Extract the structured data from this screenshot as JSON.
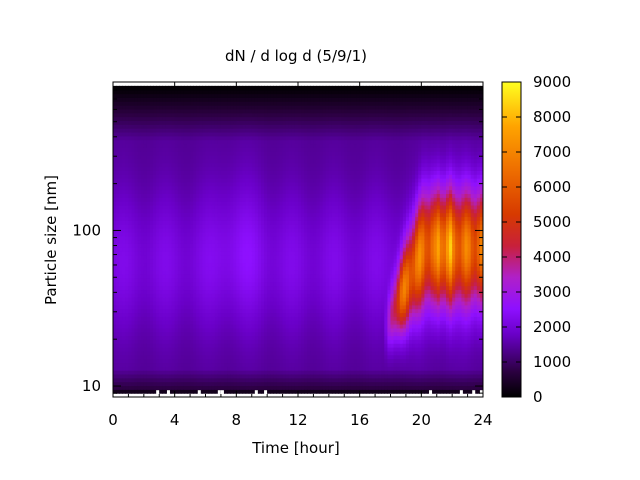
{
  "chart_data": {
    "type": "heatmap",
    "title": "dN / d log d (5/9/1)",
    "xlabel": "Time [hour]",
    "ylabel": "Particle size [nm]",
    "xlim": [
      0,
      24
    ],
    "ylim": [
      8.5,
      900
    ],
    "yscale": "log",
    "x_ticks": [
      0,
      4,
      8,
      12,
      16,
      20,
      24
    ],
    "y_ticks": [
      10,
      100
    ],
    "colorbar": {
      "range": [
        0,
        9000
      ],
      "ticks": [
        0,
        1000,
        2000,
        3000,
        4000,
        5000,
        6000,
        7000,
        8000,
        9000
      ],
      "palette": "black-purple-red-orange-yellow"
    },
    "data_extent": {
      "x": [
        0,
        24
      ],
      "y_nm": [
        9,
        850
      ]
    },
    "features": [
      {
        "time_hour": 0,
        "size_nm": 60,
        "value": 1800
      },
      {
        "time_hour": 8,
        "size_nm": 80,
        "value": 2200
      },
      {
        "time_hour": 16,
        "size_nm": 50,
        "value": 1900
      },
      {
        "time_hour": 18.7,
        "size_nm": 22,
        "value": 5800
      },
      {
        "time_hour": 20.3,
        "size_nm": 90,
        "value": 6400
      },
      {
        "time_hour": 21.5,
        "size_nm": 70,
        "value": 7400
      },
      {
        "time_hour": 22.5,
        "size_nm": 80,
        "value": 6000
      },
      {
        "time_hour": 23.5,
        "size_nm": 70,
        "value": 5400
      }
    ],
    "low_size_gaps_hour": [
      2.8,
      3.5,
      5.5,
      6.8,
      7.0,
      9.2,
      9.8,
      20.5,
      22.5,
      23.3,
      23.8
    ]
  }
}
